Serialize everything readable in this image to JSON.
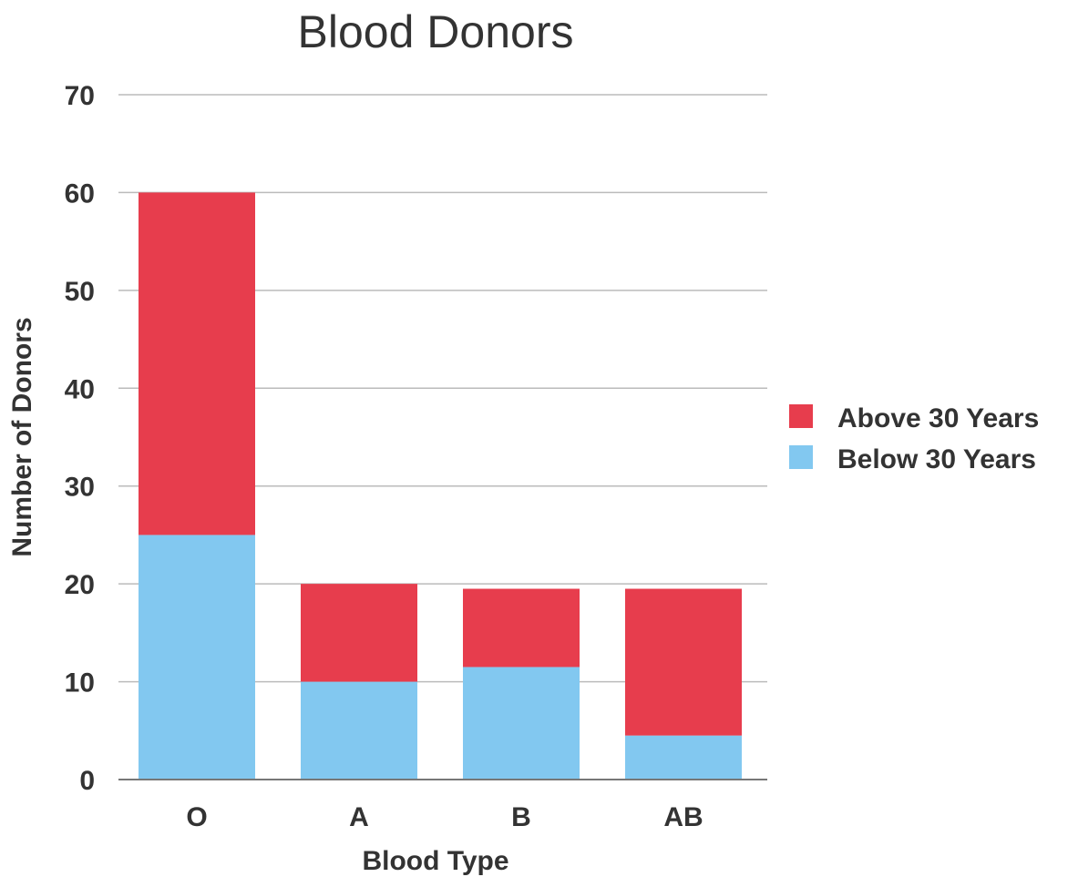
{
  "chart_data": {
    "type": "bar",
    "stacked": true,
    "title": "Blood Donors",
    "xlabel": "Blood Type",
    "ylabel": "Number of Donors",
    "categories": [
      "O",
      "A",
      "B",
      "AB"
    ],
    "ylim": [
      0,
      70
    ],
    "yticks": [
      0,
      10,
      20,
      30,
      40,
      50,
      60,
      70
    ],
    "grid": true,
    "legend_position": "right",
    "series": [
      {
        "name": "Below 30 Years",
        "color": "#82C8F0",
        "values": [
          25,
          10,
          11.5,
          4.5
        ]
      },
      {
        "name": "Above 30 Years",
        "color": "#E73D4D",
        "values": [
          35,
          10,
          8,
          15
        ]
      }
    ],
    "legend_order": [
      1,
      0
    ]
  }
}
